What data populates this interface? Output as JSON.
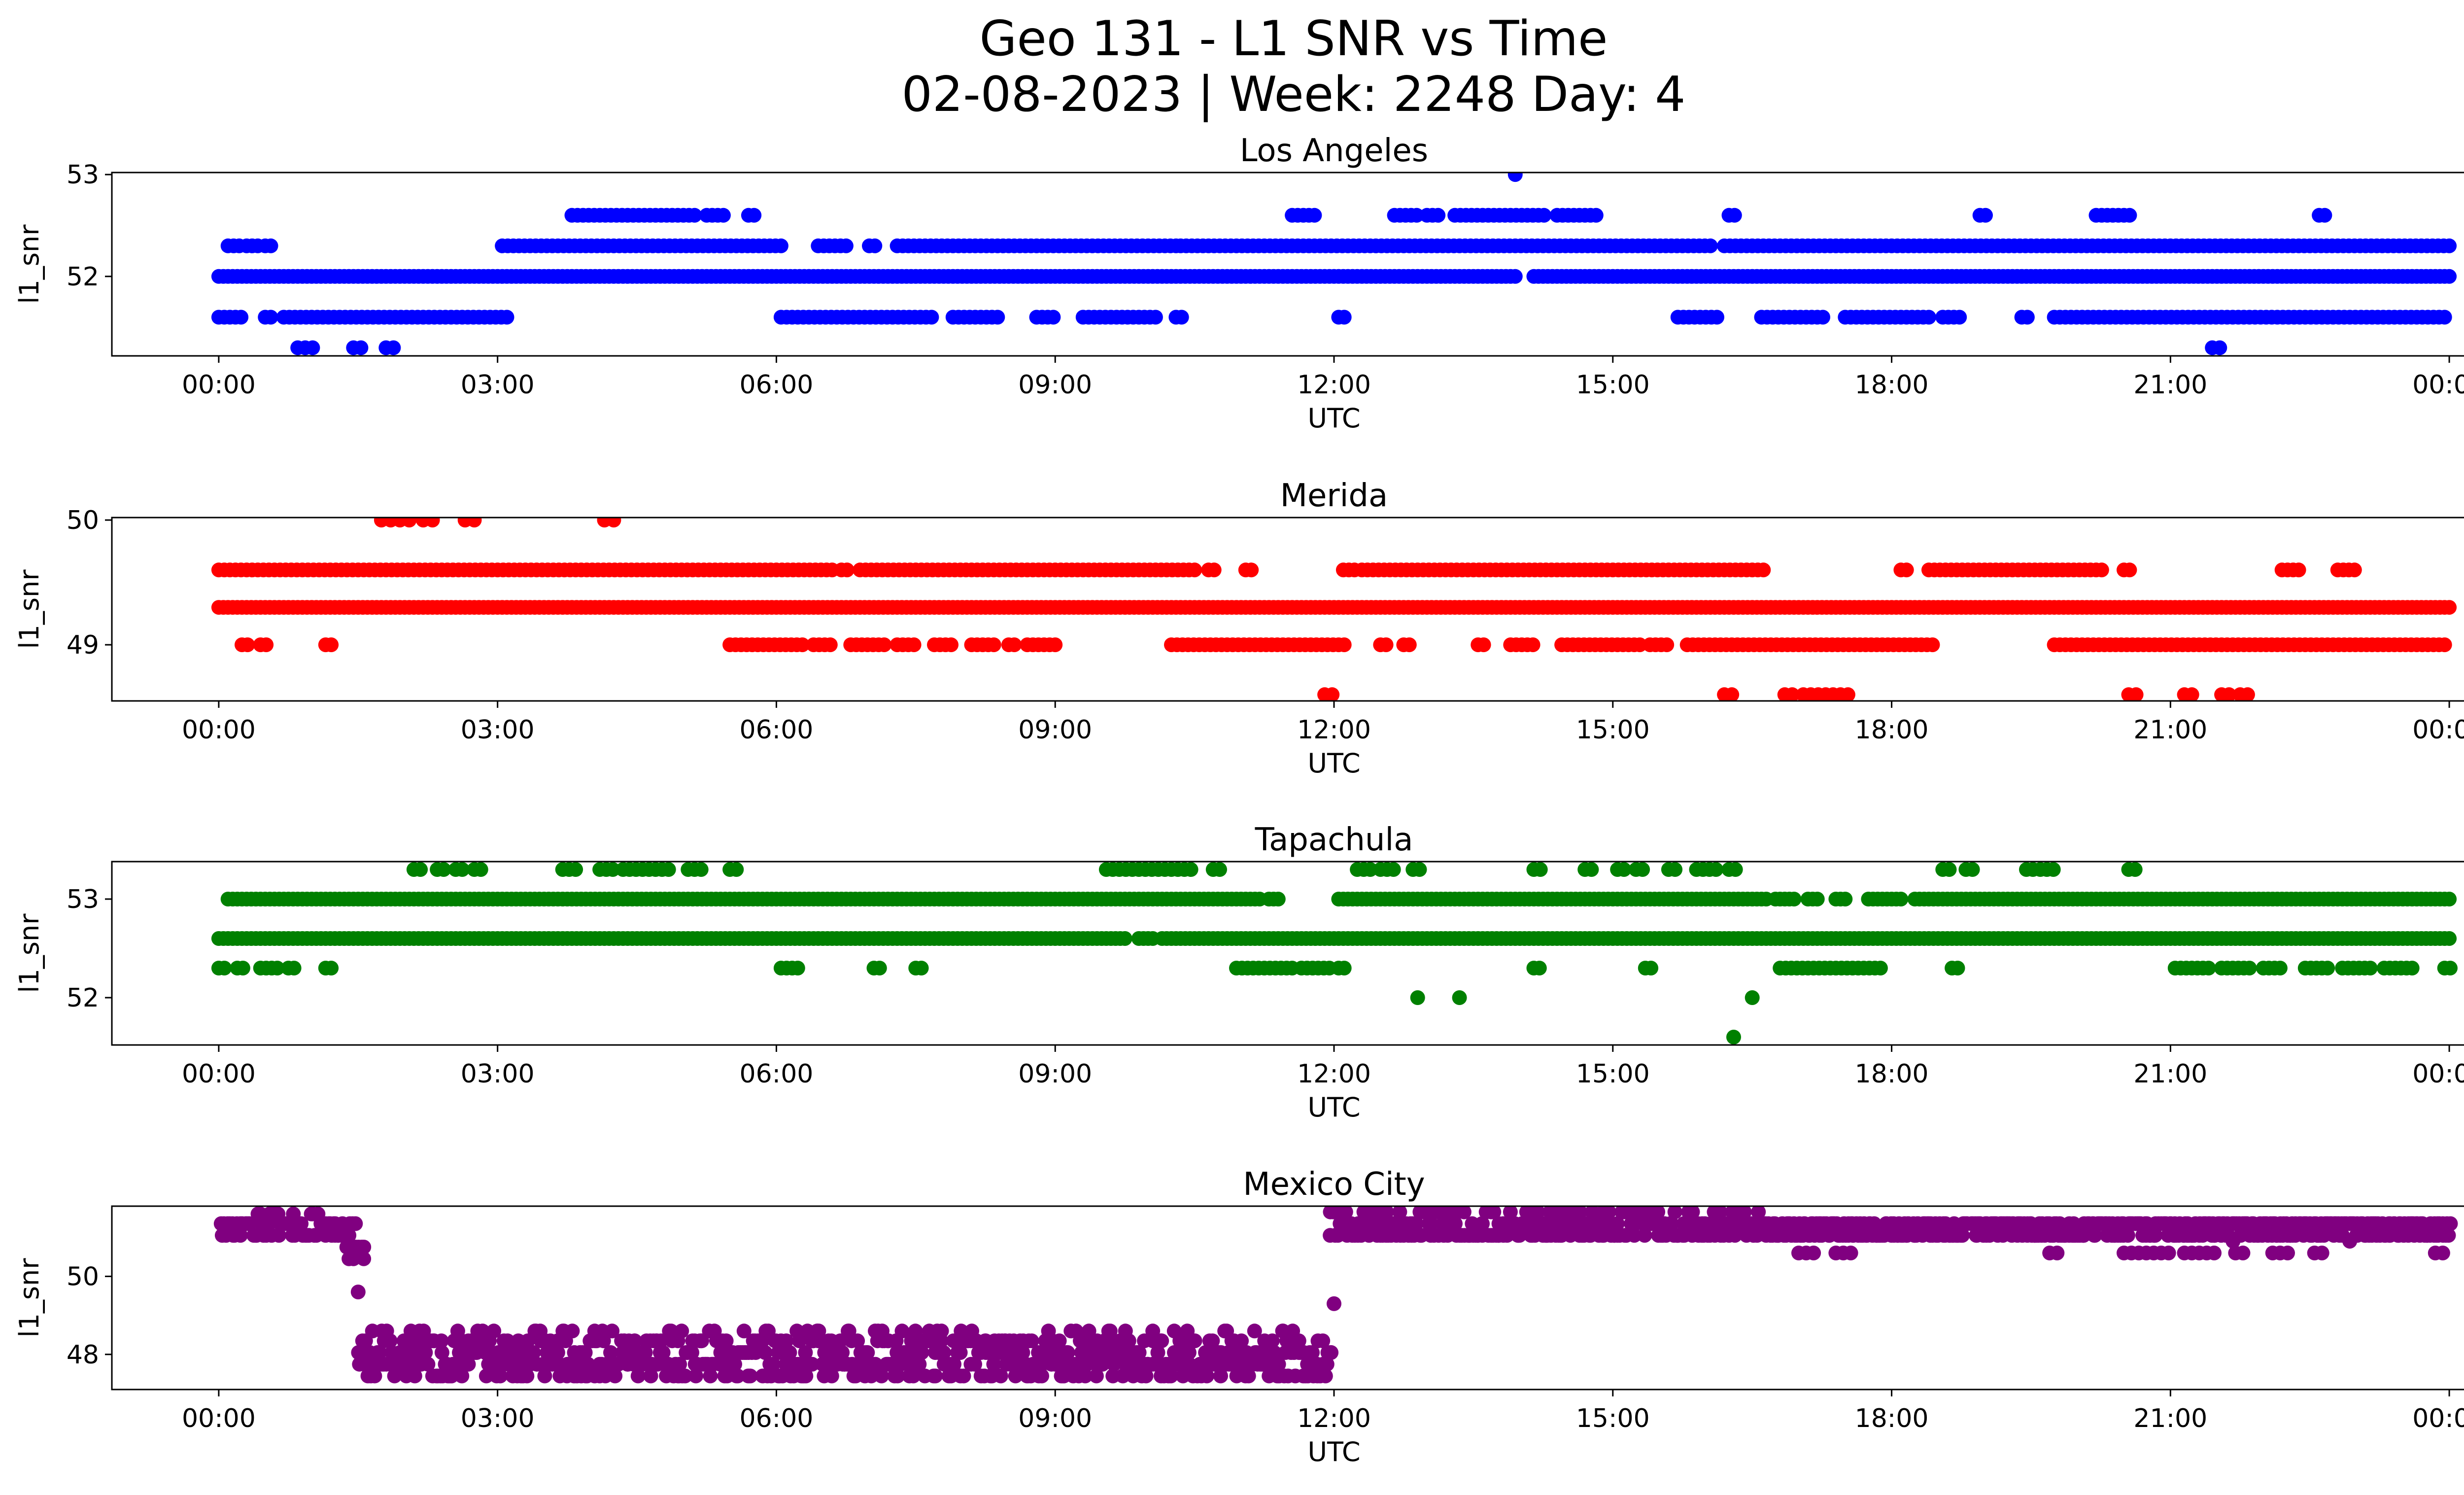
{
  "title_line1": "Geo 131 - L1 SNR vs Time",
  "title_line2": "02-08-2023 | Week: 2248 Day: 4",
  "chart_data": [
    {
      "type": "scatter",
      "title": "Los Angeles",
      "xlabel": "UTC",
      "ylabel": "l1_snr",
      "color": "#0000ff",
      "xlim_hours": [
        -1.15,
        25.15
      ],
      "xticks": [
        "00:00",
        "03:00",
        "06:00",
        "09:00",
        "12:00",
        "15:00",
        "18:00",
        "21:00",
        "00:00"
      ],
      "ylim": [
        51.22,
        53.02
      ],
      "yticks": [
        52,
        53
      ],
      "ytick_labels": [
        "52",
        "53"
      ],
      "series": [
        {
          "y": 52.0,
          "ranges": [
            [
              0.0,
              13.95
            ],
            [
              14.15,
              24.0
            ]
          ],
          "step": 0.05
        },
        {
          "y": 52.3,
          "ranges": [
            [
              0.1,
              0.25
            ],
            [
              0.3,
              0.45
            ],
            [
              0.5,
              0.6
            ],
            [
              3.05,
              6.05
            ],
            [
              6.45,
              6.8
            ],
            [
              7.0,
              7.1
            ],
            [
              7.3,
              10.3
            ],
            [
              10.35,
              16.1
            ],
            [
              16.2,
              24.0
            ]
          ],
          "step": 0.06
        },
        {
          "y": 51.6,
          "ranges": [
            [
              0.0,
              0.25
            ],
            [
              0.5,
              0.6
            ],
            [
              0.7,
              3.15
            ],
            [
              6.05,
              7.7
            ],
            [
              7.9,
              8.4
            ],
            [
              8.8,
              9.0
            ],
            [
              9.3,
              10.1
            ],
            [
              10.3,
              10.4
            ],
            [
              12.05,
              12.15
            ],
            [
              15.7,
              16.15
            ],
            [
              16.6,
              17.3
            ],
            [
              17.5,
              18.4
            ],
            [
              18.55,
              18.75
            ],
            [
              19.4,
              19.5
            ],
            [
              19.75,
              24.0
            ]
          ],
          "step": 0.06
        },
        {
          "y": 52.6,
          "ranges": [
            [
              3.8,
              5.15
            ],
            [
              5.25,
              5.45
            ],
            [
              5.7,
              5.8
            ],
            [
              11.55,
              11.8
            ],
            [
              12.65,
              12.9
            ],
            [
              13.0,
              13.15
            ],
            [
              13.3,
              14.3
            ],
            [
              14.4,
              14.85
            ],
            [
              16.25,
              16.35
            ],
            [
              18.95,
              19.05
            ],
            [
              20.2,
              20.6
            ],
            [
              22.6,
              22.7
            ]
          ],
          "step": 0.06
        },
        {
          "y": 51.3,
          "ranges": [
            [
              0.85,
              1.05
            ],
            [
              1.45,
              1.55
            ],
            [
              1.8,
              1.95
            ],
            [
              21.45,
              21.55
            ]
          ],
          "step": 0.08
        },
        {
          "y": 53.0,
          "points": [
            13.95
          ]
        }
      ]
    },
    {
      "type": "scatter",
      "title": "Merida",
      "xlabel": "UTC",
      "ylabel": "l1_snr",
      "color": "#ff0000",
      "xlim_hours": [
        -1.15,
        25.15
      ],
      "xticks": [
        "00:00",
        "03:00",
        "06:00",
        "09:00",
        "12:00",
        "15:00",
        "18:00",
        "21:00",
        "00:00"
      ],
      "ylim": [
        48.55,
        50.02
      ],
      "yticks": [
        49,
        50
      ],
      "ytick_labels": [
        "49",
        "50"
      ],
      "series": [
        {
          "y": 49.3,
          "ranges": [
            [
              0.0,
              24.0
            ]
          ],
          "step": 0.05
        },
        {
          "y": 49.6,
          "ranges": [
            [
              0.0,
              6.6
            ],
            [
              6.7,
              6.8
            ],
            [
              6.9,
              10.5
            ],
            [
              10.65,
              10.75
            ],
            [
              11.05,
              11.15
            ],
            [
              12.1,
              12.25
            ],
            [
              12.3,
              16.45
            ],
            [
              16.5,
              16.65
            ],
            [
              18.1,
              18.2
            ],
            [
              18.4,
              20.3
            ],
            [
              20.5,
              20.6
            ],
            [
              22.2,
              22.4
            ],
            [
              22.8,
              23.0
            ]
          ],
          "step": 0.06
        },
        {
          "y": 49.0,
          "ranges": [
            [
              0.25,
              0.35
            ],
            [
              0.45,
              0.55
            ],
            [
              1.15,
              1.25
            ],
            [
              5.5,
              6.3
            ],
            [
              6.4,
              6.6
            ],
            [
              6.8,
              7.2
            ],
            [
              7.3,
              7.5
            ],
            [
              7.7,
              7.9
            ],
            [
              8.1,
              8.35
            ],
            [
              8.5,
              8.6
            ],
            [
              8.7,
              9.0
            ],
            [
              10.25,
              12.15
            ],
            [
              12.5,
              12.6
            ],
            [
              12.75,
              12.85
            ],
            [
              13.55,
              13.65
            ],
            [
              13.9,
              14.15
            ],
            [
              14.45,
              14.7
            ],
            [
              14.75,
              15.3
            ],
            [
              15.4,
              15.6
            ],
            [
              15.8,
              18.45
            ],
            [
              19.75,
              24.0
            ]
          ],
          "step": 0.06
        },
        {
          "y": 50.0,
          "ranges": [
            [
              1.75,
              1.85
            ],
            [
              1.95,
              2.05
            ],
            [
              2.2,
              2.3
            ],
            [
              2.65,
              2.75
            ],
            [
              4.15,
              4.25
            ]
          ],
          "step": 0.1
        },
        {
          "y": 48.6,
          "ranges": [
            [
              11.9,
              12.0
            ],
            [
              16.2,
              16.3
            ],
            [
              16.85,
              16.95
            ],
            [
              17.05,
              17.4
            ],
            [
              17.45,
              17.55
            ],
            [
              20.55,
              20.65
            ],
            [
              21.15,
              21.25
            ],
            [
              21.55,
              21.65
            ],
            [
              21.75,
              21.85
            ]
          ],
          "step": 0.08
        }
      ]
    },
    {
      "type": "scatter",
      "title": "Tapachula",
      "xlabel": "UTC",
      "ylabel": "l1_snr",
      "color": "#008000",
      "xlim_hours": [
        -1.15,
        25.15
      ],
      "xticks": [
        "00:00",
        "03:00",
        "06:00",
        "09:00",
        "12:00",
        "15:00",
        "18:00",
        "21:00",
        "00:00"
      ],
      "ylim": [
        51.52,
        53.38
      ],
      "yticks": [
        52,
        53
      ],
      "ytick_labels": [
        "52",
        "53"
      ],
      "series": [
        {
          "y": 52.6,
          "ranges": [
            [
              0.0,
              9.75
            ],
            [
              9.9,
              10.05
            ],
            [
              10.15,
              24.0
            ]
          ],
          "step": 0.05
        },
        {
          "y": 53.0,
          "ranges": [
            [
              0.1,
              11.2
            ],
            [
              11.3,
              11.4
            ],
            [
              12.05,
              16.65
            ],
            [
              16.75,
              16.95
            ],
            [
              17.1,
              17.2
            ],
            [
              17.4,
              17.5
            ],
            [
              17.75,
              18.1
            ],
            [
              18.25,
              24.0
            ]
          ],
          "step": 0.05
        },
        {
          "y": 52.3,
          "ranges": [
            [
              0.0,
              0.1
            ],
            [
              0.2,
              0.3
            ],
            [
              0.45,
              0.65
            ],
            [
              0.75,
              0.85
            ],
            [
              1.15,
              1.25
            ],
            [
              6.05,
              6.25
            ],
            [
              7.05,
              7.15
            ],
            [
              7.5,
              7.6
            ],
            [
              10.95,
              11.55
            ],
            [
              11.65,
              11.95
            ],
            [
              12.05,
              12.15
            ],
            [
              14.15,
              14.25
            ],
            [
              15.35,
              15.45
            ],
            [
              16.8,
              17.9
            ],
            [
              18.65,
              18.75
            ],
            [
              21.05,
              21.45
            ],
            [
              21.55,
              21.85
            ],
            [
              22.0,
              22.2
            ],
            [
              22.45,
              22.7
            ],
            [
              22.85,
              23.15
            ],
            [
              23.3,
              23.65
            ],
            [
              23.95,
              24.05
            ]
          ],
          "step": 0.06
        },
        {
          "y": 53.3,
          "ranges": [
            [
              2.1,
              2.2
            ],
            [
              2.35,
              2.45
            ],
            [
              2.55,
              2.65
            ],
            [
              2.75,
              2.85
            ],
            [
              3.7,
              3.9
            ],
            [
              4.1,
              4.3
            ],
            [
              4.35,
              4.85
            ],
            [
              5.05,
              5.25
            ],
            [
              5.5,
              5.6
            ],
            [
              9.55,
              10.5
            ],
            [
              10.7,
              10.8
            ],
            [
              12.25,
              12.4
            ],
            [
              12.5,
              12.65
            ],
            [
              12.85,
              12.95
            ],
            [
              14.15,
              14.25
            ],
            [
              14.7,
              14.8
            ],
            [
              15.05,
              15.15
            ],
            [
              15.25,
              15.35
            ],
            [
              15.6,
              15.7
            ],
            [
              15.9,
              16.15
            ],
            [
              16.25,
              16.35
            ],
            [
              18.55,
              18.65
            ],
            [
              18.8,
              18.9
            ],
            [
              19.45,
              19.55
            ],
            [
              19.6,
              19.75
            ],
            [
              20.55,
              20.65
            ]
          ],
          "step": 0.07
        },
        {
          "y": 52.0,
          "points": [
            12.9,
            13.35,
            16.5
          ]
        },
        {
          "y": 51.6,
          "points": [
            16.3
          ]
        }
      ]
    },
    {
      "type": "scatter",
      "title": "Mexico City",
      "xlabel": "UTC",
      "ylabel": "l1_snr",
      "color": "#800080",
      "xlim_hours": [
        -1.15,
        25.15
      ],
      "xticks": [
        "00:00",
        "03:00",
        "06:00",
        "09:00",
        "12:00",
        "15:00",
        "18:00",
        "21:00",
        "00:00"
      ],
      "ylim": [
        47.1,
        51.8
      ],
      "yticks": [
        48,
        50
      ],
      "ytick_labels": [
        "48",
        "50"
      ],
      "series": [
        {
          "band": [
            51.0,
            51.6
          ],
          "ranges": [
            [
              0.0,
              1.45
            ]
          ],
          "step": 0.04,
          "seed": 3
        },
        {
          "band": [
            50.3,
            51.0
          ],
          "ranges": [
            [
              1.35,
              1.55
            ]
          ],
          "step": 0.05,
          "seed": 5
        },
        {
          "y": 49.6,
          "points": [
            1.5
          ]
        },
        {
          "band": [
            47.4,
            48.6
          ],
          "ranges": [
            [
              1.5,
              11.95
            ]
          ],
          "step": 0.03,
          "seed": 7
        },
        {
          "y": 49.3,
          "points": [
            12.0
          ]
        },
        {
          "band": [
            50.9,
            51.7
          ],
          "ranges": [
            [
              11.95,
              16.6
            ]
          ],
          "step": 0.035,
          "seed": 11
        },
        {
          "band": [
            50.9,
            51.5
          ],
          "ranges": [
            [
              16.6,
              24.0
            ]
          ],
          "step": 0.035,
          "seed": 13
        },
        {
          "y": 50.6,
          "ranges": [
            [
              17.0,
              17.2
            ],
            [
              17.4,
              17.6
            ],
            [
              19.7,
              19.8
            ],
            [
              20.5,
              21.0
            ],
            [
              21.15,
              21.5
            ],
            [
              21.7,
              21.8
            ],
            [
              22.1,
              22.3
            ],
            [
              22.55,
              22.65
            ],
            [
              23.85,
              23.95
            ]
          ],
          "step": 0.08
        }
      ]
    }
  ]
}
